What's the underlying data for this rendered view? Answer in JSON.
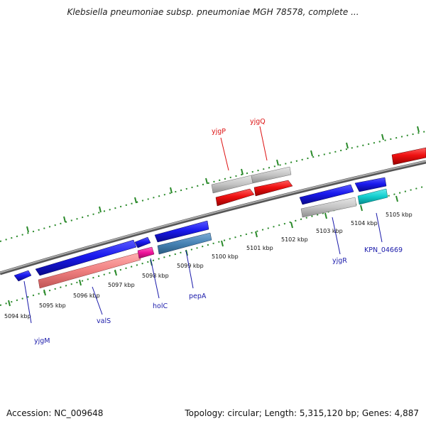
{
  "title": "Klebsiella pneumoniae subsp. pneumoniae MGH 78578, complete ...",
  "footer": {
    "accession": "Accession: NC_009648",
    "summary": "Topology: circular; Length: 5,315,120 bp; Genes: 4,887"
  },
  "scale_labels": [
    "5094 kbp",
    "5095 kbp",
    "5096 kbp",
    "5097 kbp",
    "5098 kbp",
    "5099 kbp",
    "5100 kbp",
    "5101 kbp",
    "5102 kbp",
    "5103 kbp",
    "5104 kbp",
    "5105 kbp"
  ],
  "gene_labels": {
    "yjgM": "yjgM",
    "valS": "valS",
    "holC": "holC",
    "pepA": "pepA",
    "yjgP": "yjgP",
    "yjgQ": "yjgQ",
    "yjgR": "yjgR",
    "KPN_04669": "KPN_04669"
  },
  "colors": {
    "forward_gene": "#1a1aee",
    "reverse_gene": "#ee1111",
    "gray_feature": "#c4c4c4",
    "pink_feature": "#f08080",
    "magenta_feature": "#ee1199",
    "steelblue_feature": "#4682b4",
    "cyan_feature": "#11cccc",
    "backbone": "#888888",
    "ticks": "#2a8a2a",
    "forward_label": "#1a1aaa",
    "reverse_label": "#dd1111"
  }
}
